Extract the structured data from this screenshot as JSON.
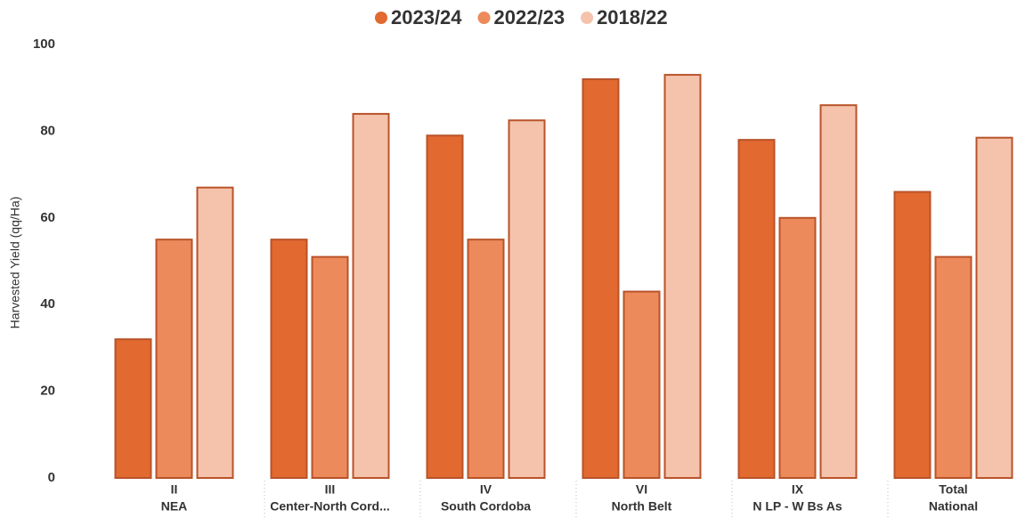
{
  "chart_data": {
    "type": "bar",
    "y_label": "Harvested Yield (qq/Ha)",
    "categories": [
      [
        "II",
        "NEA"
      ],
      [
        "III",
        "Center-North Cord..."
      ],
      [
        "IV",
        "South Cordoba"
      ],
      [
        "VI",
        "North Belt"
      ],
      [
        "IX",
        "N LP - W Bs As"
      ],
      [
        "Total",
        "National"
      ]
    ],
    "series": [
      {
        "name": "2023/24",
        "color": "#e2692f",
        "values": [
          32,
          55,
          79,
          92,
          78,
          66
        ]
      },
      {
        "name": "2022/23",
        "color": "#ec8a5c",
        "values": [
          55,
          51,
          55,
          43,
          60,
          51
        ]
      },
      {
        "name": "2018/22",
        "color": "#f5c3ac",
        "values": [
          67,
          84,
          82.5,
          93,
          86,
          78.5
        ]
      }
    ],
    "ylim": [
      0,
      100
    ],
    "yticks": [
      0,
      20,
      40,
      60,
      80,
      100
    ],
    "grid": false,
    "legend": "top"
  }
}
